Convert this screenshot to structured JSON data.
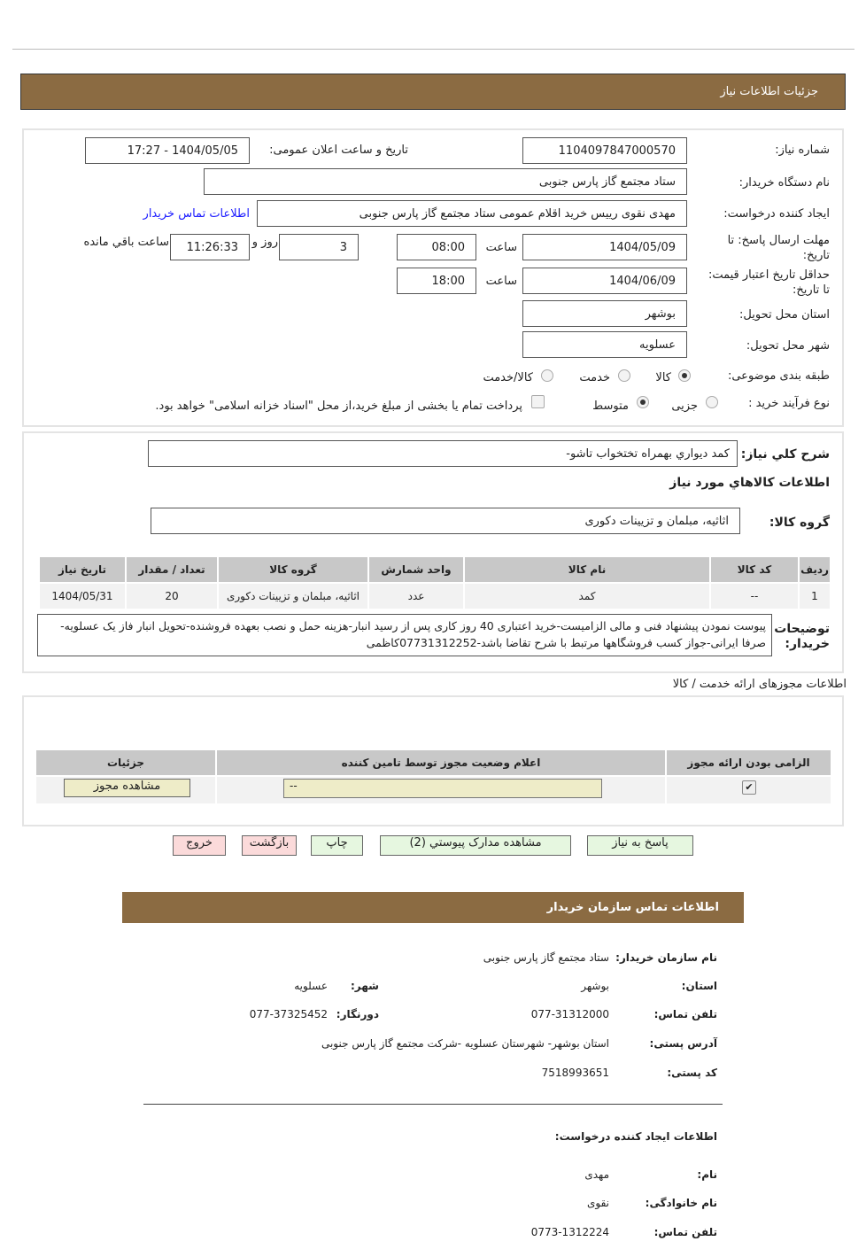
{
  "header": {
    "title": "جزئیات اطلاعات نیاز"
  },
  "form": {
    "need_no_label": "شماره نیاز:",
    "need_no": "1104097847000570",
    "announce_label": "تاریخ و ساعت اعلان عمومی:",
    "announce": "1404/05/05 - 17:27",
    "buyer_label": "نام دستگاه خریدار:",
    "buyer": "ستاد مجتمع گاز پارس جنوبی",
    "creator_label": "ایجاد کننده درخواست:",
    "creator": "مهدی نقوی رییس خرید اقلام عمومی ستاد مجتمع گاز پارس جنوبی",
    "contact_link": "اطلاعات تماس خریدار",
    "deadline_label1": "مهلت ارسال پاسخ: تا",
    "deadline_label2": "تاریخ:",
    "deadline_date": "1404/05/09",
    "time_label": "ساعت",
    "deadline_time": "08:00",
    "days": "3",
    "days_label": "روز و",
    "remaining": "11:26:33",
    "remaining_label": "ساعت باقي مانده",
    "validity_label1": "حداقل تاریخ اعتبار قیمت:",
    "validity_label2": "تا تاریخ:",
    "validity_date": "1404/06/09",
    "validity_time": "18:00",
    "province_label": "استان محل تحویل:",
    "province": "بوشهر",
    "city_label": "شهر محل تحویل:",
    "city": "عسلویه",
    "category_label": "طبقه بندی موضوعی:",
    "category_options": [
      "کالا",
      "خدمت",
      "کالا/خدمت"
    ],
    "category_selected": "کالا",
    "process_label": "نوع فرآیند خرید :",
    "process_options": [
      "جزیی",
      "متوسط"
    ],
    "process_selected": "متوسط",
    "payment_note": "پرداخت تمام یا بخشی از مبلغ خرید،از محل \"اسناد خزانه اسلامی\" خواهد بود."
  },
  "goods": {
    "summary_label": "شرح كلي نياز:",
    "summary": "كمد ديواري بهمراه تختخواب تاشو-",
    "section_title": "اطلاعات كالاهاي مورد نياز",
    "group_label": "گروه کالا:",
    "group": "اثاثیه، مبلمان و تزیینات دکوری",
    "columns": [
      "ردیف",
      "کد کالا",
      "نام کالا",
      "واحد شمارش",
      "گروه کالا",
      "تعداد / مقدار",
      "تاریخ نیاز"
    ],
    "rows": [
      [
        "1",
        "--",
        "کمد",
        "عدد",
        "اثاثیه، مبلمان و تزیینات دکوری",
        "20",
        "1404/05/31"
      ]
    ],
    "notes_label": "توضیحات خریدار:",
    "notes": "پیوست نمودن پیشنهاد فنی و مالی الزامیست-خرید اعتباری 40 روز کاری پس از رسید انبار-هزینه حمل و نصب بعهده فروشنده-تحویل انبار فاز یک عسلویه-صرفا ایرانی-جواز کسب فروشگاهها مرتبط با شرح تقاضا باشد-07731312252کاظمی"
  },
  "permits": {
    "title": "اطلاعات مجوزهای ارائه خدمت / کالا",
    "columns": [
      "الزامی بودن ارائه مجوز",
      "اعلام وضعیت مجوز توسط تامین کننده",
      "جزئیات"
    ],
    "required": true,
    "status": "--",
    "view_button": "مشاهده مجوز"
  },
  "actions": {
    "reply": "پاسخ به نیاز",
    "attachments": "مشاهده مدارک پیوستي (2)",
    "print": "چاپ",
    "back": "بازگشت",
    "exit": "خروج"
  },
  "contact": {
    "title": "اطلاعات تماس سازمان خریدار",
    "org_label": "نام سازمان خریدار:",
    "org": "ستاد مجتمع گاز پارس جنوبی",
    "province_label": "استان:",
    "province": "بوشهر",
    "city_label": "شهر:",
    "city": "عسلویه",
    "phone_label": "تلفن تماس:",
    "phone": "077-31312000",
    "fax_label": "دورنگار:",
    "fax": "077-37325452",
    "address_label": "آدرس پستی:",
    "address": "استان بوشهر- شهرستان عسلویه -شرکت مجتمع گاز پارس جنوبی",
    "postal_label": "کد پستی:",
    "postal": "7518993651",
    "creator_title": "اطلاعات ایجاد کننده درخواست:",
    "first_label": "نام:",
    "first": "مهدی",
    "last_label": "نام خانوادگی:",
    "last": "نقوی",
    "cphone_label": "تلفن تماس:",
    "cphone": "0773-1312224"
  }
}
